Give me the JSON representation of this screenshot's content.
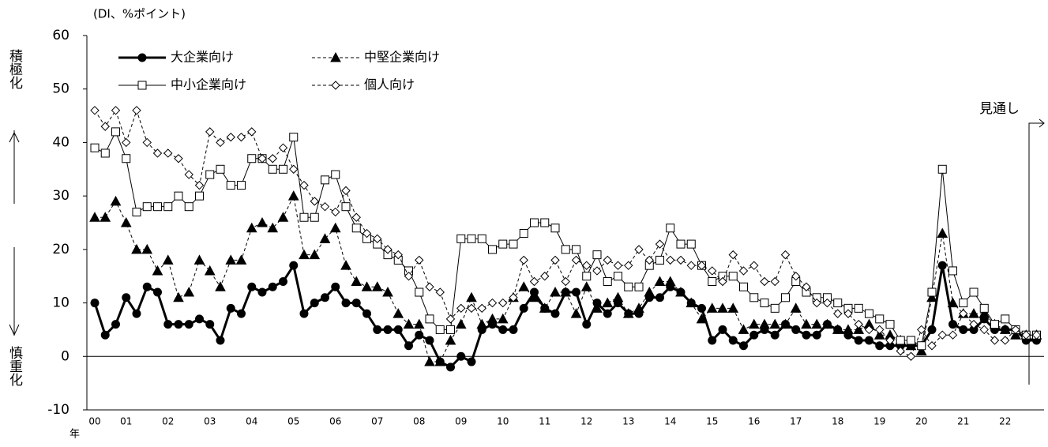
{
  "chart_data": {
    "type": "line",
    "unit_label": "(DI、%ポイント)",
    "up_label": "積極化",
    "down_label": "慎重化",
    "outlook_label": "見通し",
    "x_axis_label": "年",
    "categories": [
      "00",
      null,
      null,
      "01",
      null,
      null,
      null,
      "02",
      null,
      null,
      null,
      "03",
      null,
      null,
      null,
      "04",
      null,
      null,
      null,
      "05",
      null,
      null,
      null,
      "06",
      null,
      null,
      null,
      "07",
      null,
      null,
      null,
      "08",
      null,
      null,
      null,
      "09",
      null,
      null,
      null,
      "10",
      null,
      null,
      null,
      "11",
      null,
      null,
      null,
      "12",
      null,
      null,
      null,
      "13",
      null,
      null,
      null,
      "14",
      null,
      null,
      null,
      "15",
      null,
      null,
      null,
      "16",
      null,
      null,
      null,
      "17",
      null,
      null,
      null,
      "18",
      null,
      null,
      null,
      "19",
      null,
      null,
      null,
      "20",
      null,
      null,
      null,
      "21",
      null,
      null,
      null,
      "22",
      null,
      null,
      null
    ],
    "ylim": [
      -10,
      60
    ],
    "yticks": [
      -10,
      0,
      10,
      20,
      30,
      40,
      50,
      60
    ],
    "series": [
      {
        "name": "大企業向け",
        "color": "#000000",
        "marker": "circle",
        "filled": true,
        "dashed": false,
        "width": 3,
        "values": [
          10,
          4,
          6,
          11,
          8,
          13,
          12,
          6,
          6,
          6,
          7,
          6,
          3,
          9,
          8,
          13,
          12,
          13,
          14,
          17,
          8,
          10,
          11,
          13,
          10,
          10,
          8,
          5,
          5,
          5,
          2,
          4,
          3,
          -1,
          -2,
          0,
          -1,
          5,
          6,
          5,
          5,
          9,
          12,
          9,
          8,
          12,
          12,
          6,
          10,
          8,
          10,
          8,
          8,
          11,
          11,
          13,
          12,
          10,
          9,
          3,
          5,
          3,
          2,
          4,
          5,
          4,
          6,
          5,
          4,
          4,
          6,
          5,
          4,
          3,
          3,
          2,
          2,
          2,
          2,
          2,
          5,
          17,
          6,
          5,
          5,
          7,
          5,
          5,
          5,
          3,
          3
        ]
      },
      {
        "name": "中堅企業向け",
        "color": "#000000",
        "marker": "triangle",
        "filled": true,
        "dashed": true,
        "width": 1,
        "values": [
          26,
          26,
          29,
          25,
          20,
          20,
          16,
          18,
          11,
          12,
          18,
          16,
          13,
          18,
          18,
          24,
          25,
          24,
          26,
          30,
          19,
          19,
          22,
          24,
          17,
          14,
          13,
          13,
          12,
          8,
          6,
          6,
          -1,
          -1,
          3,
          6,
          11,
          6,
          7,
          7,
          11,
          13,
          11,
          9,
          12,
          12,
          8,
          13,
          9,
          10,
          11,
          8,
          9,
          12,
          14,
          14,
          12,
          10,
          7,
          9,
          9,
          9,
          5,
          6,
          6,
          6,
          6,
          9,
          6,
          6,
          6,
          5,
          5,
          5,
          6,
          4,
          4,
          3,
          2,
          1,
          11,
          23,
          10,
          8,
          8,
          8,
          6,
          5,
          4,
          4,
          4
        ]
      },
      {
        "name": "中小企業向け",
        "color": "#000000",
        "marker": "square",
        "filled": false,
        "dashed": false,
        "width": 1,
        "values": [
          39,
          38,
          42,
          37,
          27,
          28,
          28,
          28,
          30,
          28,
          30,
          34,
          35,
          32,
          32,
          37,
          37,
          35,
          35,
          41,
          26,
          26,
          33,
          34,
          28,
          24,
          22,
          21,
          19,
          18,
          16,
          12,
          7,
          5,
          5,
          22,
          22,
          22,
          20,
          21,
          21,
          23,
          25,
          25,
          24,
          20,
          20,
          15,
          19,
          14,
          15,
          13,
          13,
          17,
          18,
          24,
          21,
          21,
          17,
          14,
          15,
          15,
          13,
          11,
          10,
          9,
          11,
          14,
          12,
          11,
          11,
          10,
          9,
          9,
          8,
          7,
          6,
          3,
          3,
          2,
          12,
          35,
          16,
          10,
          12,
          9,
          6,
          7,
          5,
          4,
          4
        ]
      },
      {
        "name": "個人向け",
        "color": "#000000",
        "marker": "diamond",
        "filled": false,
        "dashed": true,
        "width": 1,
        "values": [
          46,
          43,
          46,
          40,
          46,
          40,
          38,
          38,
          37,
          34,
          32,
          42,
          40,
          41,
          41,
          42,
          37,
          37,
          39,
          35,
          32,
          29,
          28,
          27,
          31,
          26,
          23,
          22,
          20,
          19,
          15,
          18,
          13,
          12,
          7,
          9,
          9,
          9,
          10,
          10,
          11,
          18,
          14,
          15,
          18,
          14,
          18,
          17,
          16,
          18,
          17,
          17,
          20,
          18,
          21,
          18,
          18,
          17,
          17,
          16,
          14,
          19,
          16,
          17,
          14,
          14,
          19,
          15,
          13,
          10,
          10,
          8,
          8,
          6,
          5,
          5,
          3,
          1,
          0,
          5,
          2,
          4,
          4,
          8,
          6,
          5,
          3,
          3,
          5,
          4,
          4
        ]
      }
    ]
  }
}
